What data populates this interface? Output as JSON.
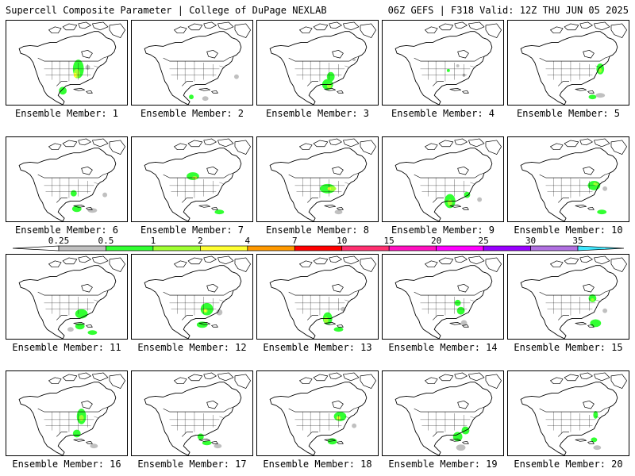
{
  "header": {
    "left_title": "Supercell Composite Parameter | College of DuPage NEXLAB",
    "right_title": "06Z GEFS | F318 Valid: 12Z THU JUN 05 2025"
  },
  "panels": [
    {
      "label": "Ensemble Member: 1"
    },
    {
      "label": "Ensemble Member: 2"
    },
    {
      "label": "Ensemble Member: 3"
    },
    {
      "label": "Ensemble Member: 4"
    },
    {
      "label": "Ensemble Member: 5"
    },
    {
      "label": "Ensemble Member: 6"
    },
    {
      "label": "Ensemble Member: 7"
    },
    {
      "label": "Ensemble Member: 8"
    },
    {
      "label": "Ensemble Member: 9"
    },
    {
      "label": "Ensemble Member: 10"
    },
    {
      "label": "Ensemble Member: 11"
    },
    {
      "label": "Ensemble Member: 12"
    },
    {
      "label": "Ensemble Member: 13"
    },
    {
      "label": "Ensemble Member: 14"
    },
    {
      "label": "Ensemble Member: 15"
    },
    {
      "label": "Ensemble Member: 16"
    },
    {
      "label": "Ensemble Member: 17"
    },
    {
      "label": "Ensemble Member: 18"
    },
    {
      "label": "Ensemble Member: 19"
    },
    {
      "label": "Ensemble Member: 20"
    }
  ],
  "colorbar": {
    "levels": [
      "0.25",
      "0.5",
      "1",
      "2",
      "4",
      "7",
      "10",
      "15",
      "20",
      "25",
      "30",
      "35"
    ],
    "colors": [
      "#ffffff",
      "#c0c0c0",
      "#32ff32",
      "#a0ff32",
      "#ffff32",
      "#ff9900",
      "#ff0000",
      "#ff3070",
      "#ff10c0",
      "#ff00ff",
      "#9900ff",
      "#b070e0",
      "#40e8ff"
    ]
  }
}
